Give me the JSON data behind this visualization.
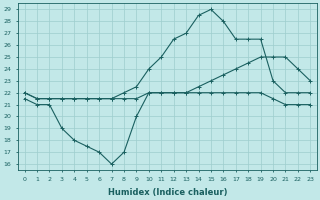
{
  "xlabel": "Humidex (Indice chaleur)",
  "bg_color": "#c2e8e8",
  "grid_color": "#9ecece",
  "line_color": "#1a6060",
  "xlim": [
    -0.5,
    23.5
  ],
  "ylim": [
    15.5,
    29.5
  ],
  "xticks": [
    0,
    1,
    2,
    3,
    4,
    5,
    6,
    7,
    8,
    9,
    10,
    11,
    12,
    13,
    14,
    15,
    16,
    17,
    18,
    19,
    20,
    21,
    22,
    23
  ],
  "yticks": [
    16,
    17,
    18,
    19,
    20,
    21,
    22,
    23,
    24,
    25,
    26,
    27,
    28,
    29
  ],
  "line1_x": [
    0,
    1,
    2,
    3,
    4,
    5,
    6,
    7,
    8,
    9,
    10,
    11,
    12,
    13,
    14,
    15,
    16,
    17,
    18,
    19,
    20,
    21,
    22,
    23
  ],
  "line1_y": [
    21.5,
    21,
    21,
    19,
    18,
    17.5,
    17,
    16,
    17,
    20,
    22,
    22,
    22,
    22,
    22,
    22,
    22,
    22,
    22,
    22,
    21.5,
    21,
    21,
    21
  ],
  "line2_x": [
    0,
    1,
    2,
    3,
    4,
    5,
    6,
    7,
    8,
    9,
    10,
    11,
    12,
    13,
    14,
    15,
    16,
    17,
    18,
    19,
    20,
    21,
    22,
    23
  ],
  "line2_y": [
    22,
    21.5,
    21.5,
    21.5,
    21.5,
    21.5,
    21.5,
    21.5,
    21.5,
    21.5,
    22,
    22,
    22,
    22,
    22.5,
    23,
    23.5,
    24,
    24.5,
    25,
    25,
    25,
    24,
    23
  ],
  "line3_x": [
    0,
    1,
    2,
    3,
    4,
    5,
    6,
    7,
    8,
    9,
    10,
    11,
    12,
    13,
    14,
    15,
    16,
    17,
    18,
    19,
    20,
    21,
    22,
    23
  ],
  "line3_y": [
    22,
    21.5,
    21.5,
    21.5,
    21.5,
    21.5,
    21.5,
    21.5,
    22,
    22.5,
    24,
    25,
    26.5,
    27,
    28.5,
    29,
    28,
    26.5,
    26.5,
    26.5,
    23,
    22,
    22,
    22
  ]
}
